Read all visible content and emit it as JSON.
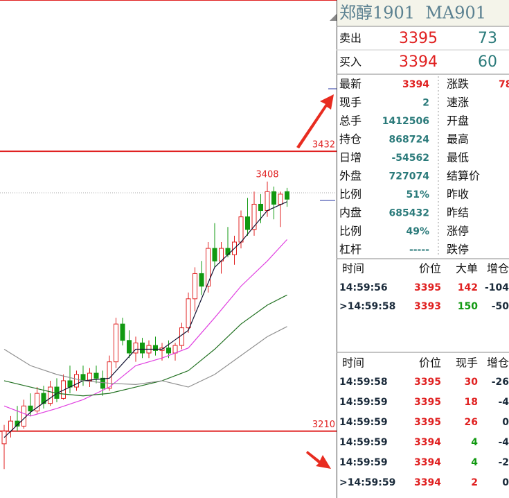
{
  "chart": {
    "ylim": [
      3157,
      3552
    ],
    "price_levels": [
      3432,
      3210
    ],
    "high_label": 3408,
    "candles": {
      "open": [
        3200,
        3210,
        3218,
        3214,
        3230,
        3226,
        3240,
        3232,
        3245,
        3236,
        3250,
        3245,
        3255,
        3250,
        3256,
        3252,
        3244,
        3265,
        3295,
        3282,
        3272,
        3280,
        3272,
        3278,
        3274,
        3276,
        3272,
        3278,
        3292,
        3315,
        3335,
        3325,
        3355,
        3345,
        3355,
        3350,
        3360,
        3380,
        3370,
        3390,
        3385,
        3400,
        3390,
        3400
      ],
      "high": [
        3215,
        3222,
        3230,
        3235,
        3240,
        3245,
        3246,
        3250,
        3252,
        3255,
        3262,
        3258,
        3262,
        3260,
        3262,
        3258,
        3270,
        3300,
        3300,
        3290,
        3285,
        3284,
        3282,
        3285,
        3280,
        3282,
        3280,
        3296,
        3320,
        3340,
        3345,
        3360,
        3375,
        3360,
        3372,
        3365,
        3385,
        3395,
        3400,
        3398,
        3408,
        3404,
        3400,
        3403
      ],
      "low": [
        3180,
        3205,
        3210,
        3212,
        3222,
        3224,
        3228,
        3230,
        3233,
        3235,
        3240,
        3242,
        3246,
        3245,
        3248,
        3238,
        3242,
        3260,
        3278,
        3268,
        3265,
        3268,
        3268,
        3270,
        3266,
        3268,
        3266,
        3275,
        3288,
        3305,
        3318,
        3320,
        3340,
        3335,
        3348,
        3342,
        3355,
        3365,
        3365,
        3375,
        3380,
        3378,
        3372,
        3388
      ],
      "close": [
        3210,
        3218,
        3214,
        3230,
        3226,
        3240,
        3232,
        3245,
        3236,
        3250,
        3245,
        3255,
        3250,
        3256,
        3252,
        3244,
        3265,
        3295,
        3282,
        3272,
        3280,
        3272,
        3278,
        3274,
        3276,
        3272,
        3278,
        3292,
        3315,
        3335,
        3325,
        3355,
        3345,
        3355,
        3350,
        3360,
        3380,
        3370,
        3390,
        3385,
        3400,
        3390,
        3398,
        3394
      ],
      "up_color": "#e02020",
      "down_color": "#119911"
    },
    "moving_averages": {
      "x": [
        0,
        4,
        8,
        12,
        16,
        20,
        24,
        28,
        32,
        36,
        40,
        43
      ],
      "series": [
        {
          "color": "#101030",
          "values": [
            3205,
            3225,
            3240,
            3250,
            3252,
            3275,
            3275,
            3290,
            3340,
            3360,
            3385,
            3392
          ]
        },
        {
          "color": "#e040e0",
          "values": [
            3230,
            3222,
            3228,
            3235,
            3245,
            3262,
            3268,
            3276,
            3300,
            3325,
            3345,
            3362
          ]
        },
        {
          "color": "#207020",
          "values": [
            3250,
            3245,
            3240,
            3238,
            3240,
            3245,
            3250,
            3258,
            3275,
            3295,
            3310,
            3318
          ]
        },
        {
          "color": "#909090",
          "values": [
            3275,
            3262,
            3255,
            3250,
            3248,
            3247,
            3250,
            3245,
            3255,
            3270,
            3285,
            3293
          ]
        }
      ]
    }
  },
  "panel": {
    "title": "郑醇1901  MA901",
    "quote": [
      {
        "label": "卖出",
        "price": "3395",
        "volume": "73"
      },
      {
        "label": "买入",
        "price": "3394",
        "volume": "60"
      }
    ],
    "stats": [
      [
        "最新",
        "3394",
        "涨跌",
        "78"
      ],
      [
        "现手",
        "2",
        "速涨",
        ""
      ],
      [
        "总手",
        "1412506",
        "开盘",
        ""
      ],
      [
        "持仓",
        "868724",
        "最高",
        ""
      ],
      [
        "日增",
        "-54562",
        "最低",
        ""
      ],
      [
        "外盘",
        "727074",
        "结算价",
        ""
      ],
      [
        "比例",
        "51%",
        "昨收",
        ""
      ],
      [
        "内盘",
        "685432",
        "昨结",
        ""
      ],
      [
        "比例",
        "49%",
        "涨停",
        ""
      ],
      [
        "杠杆",
        "-----",
        "跌停",
        ""
      ]
    ],
    "big_trades": {
      "header": [
        "时间",
        "价位",
        "大单",
        "增仓"
      ],
      "rows": [
        [
          "14:59:56",
          "3395",
          "142",
          "-104"
        ],
        [
          ">14:59:58",
          "3393",
          "150",
          "-50"
        ]
      ],
      "volume_colors": [
        "#e02020",
        "#119911"
      ]
    },
    "ticks": {
      "header": [
        "时间",
        "价位",
        "现手",
        "增仓"
      ],
      "rows": [
        [
          "14:59:58",
          "3395",
          "30",
          "-26"
        ],
        [
          "14:59:59",
          "3395",
          "18",
          "-4"
        ],
        [
          "14:59:59",
          "3395",
          "26",
          "0"
        ],
        [
          "14:59:59",
          "3394",
          "4",
          "-4"
        ],
        [
          "14:59:59",
          "3394",
          "4",
          "-2"
        ],
        [
          ">14:59:59",
          "3394",
          "2",
          "0"
        ]
      ],
      "volume_colors": [
        "#e02020",
        "#e02020",
        "#e02020",
        "#119911",
        "#119911",
        "#e02020"
      ]
    }
  }
}
